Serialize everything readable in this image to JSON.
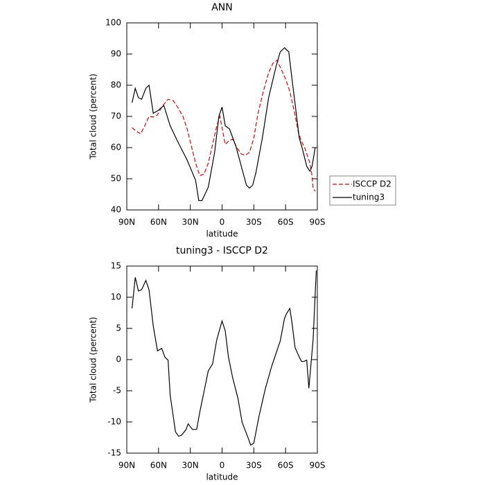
{
  "chart_data": [
    {
      "type": "line",
      "title": "ANN",
      "xlabel": "latitude",
      "ylabel": "Total cloud (percent)",
      "xlim": [
        90,
        -90
      ],
      "xticks": [
        {
          "value": 90,
          "label": "90N"
        },
        {
          "value": 60,
          "label": "60N"
        },
        {
          "value": 30,
          "label": "30N"
        },
        0,
        {
          "value": -30,
          "label": "30S"
        },
        {
          "value": -60,
          "label": "60S"
        },
        {
          "value": -90,
          "label": "90S"
        }
      ],
      "ylim": [
        40,
        100
      ],
      "yticks": [
        40,
        50,
        60,
        70,
        80,
        90,
        100
      ],
      "legend": "right",
      "series": [
        {
          "name": "ISCCP D2",
          "color": "#e00000",
          "dash": true,
          "x": [
            85,
            82,
            77,
            73,
            69,
            65,
            61,
            57,
            51,
            46,
            42,
            37,
            33,
            29,
            25,
            21,
            17,
            13,
            9,
            5,
            2,
            -3,
            -6,
            -10,
            -14,
            -18,
            -22,
            -26,
            -30,
            -34,
            -39,
            -44,
            -48,
            -52,
            -56,
            -60,
            -64,
            -68,
            -72,
            -75,
            -78,
            -81,
            -83,
            -85,
            -86,
            -88
          ],
          "values": [
            66.4,
            65.5,
            64.4,
            67,
            70,
            69.8,
            70.5,
            73,
            75.5,
            75,
            73,
            70,
            66,
            60.5,
            55,
            51,
            51.5,
            55,
            61,
            67,
            70,
            61,
            62,
            62.7,
            60,
            58,
            57.5,
            58.5,
            63,
            71,
            78,
            84,
            87,
            88,
            85,
            82,
            78,
            72,
            65,
            62,
            60,
            57,
            55,
            51,
            47,
            46
          ]
        },
        {
          "name": "tuning3",
          "color": "#000000",
          "dash": false,
          "x": [
            85,
            82,
            79,
            76,
            72,
            69,
            65,
            60,
            55,
            49,
            42,
            33,
            25,
            22,
            19,
            13,
            7,
            3,
            0,
            -3,
            -7,
            -13,
            -19,
            -23,
            -26,
            -29,
            -32,
            -38,
            -44,
            -51,
            -55,
            -59,
            -63,
            -65,
            -69,
            -73,
            -76,
            -80,
            -83,
            -85,
            -88
          ],
          "values": [
            74.4,
            79,
            76,
            75.5,
            79,
            80,
            71,
            72,
            73.5,
            67,
            62,
            56,
            49.5,
            43,
            43,
            47.3,
            58.5,
            70,
            73,
            67,
            66,
            60.5,
            53,
            48,
            47,
            48,
            52,
            63,
            76,
            86,
            90.7,
            92,
            90.7,
            85,
            74,
            63,
            59.5,
            54,
            52.4,
            54,
            60
          ]
        }
      ]
    },
    {
      "type": "line",
      "title": "tuning3 - ISCCP D2",
      "xlabel": "latitude",
      "ylabel": "Total cloud (percent)",
      "xlim": [
        90,
        -90
      ],
      "xticks": [
        {
          "value": 90,
          "label": "90N"
        },
        {
          "value": 60,
          "label": "60N"
        },
        {
          "value": 30,
          "label": "30N"
        },
        0,
        {
          "value": -30,
          "label": "30S"
        },
        {
          "value": -60,
          "label": "60S"
        },
        {
          "value": -90,
          "label": "90S"
        }
      ],
      "ylim": [
        -15,
        15
      ],
      "yticks": [
        -15,
        -10,
        -5,
        0,
        5,
        10,
        15
      ],
      "series": [
        {
          "color": "#000000",
          "dash": false,
          "x": [
            85,
            82,
            79,
            76,
            72,
            69,
            65,
            61,
            57,
            54,
            51,
            49,
            44,
            41,
            38,
            34,
            32,
            28,
            24,
            21,
            17,
            13,
            9,
            5,
            0,
            -3,
            -6,
            -10,
            -15,
            -19,
            -24,
            -27,
            -30,
            -35,
            -41,
            -47,
            -51,
            -55,
            -59,
            -61,
            -64,
            -66,
            -69,
            -73,
            -75,
            -77,
            -80,
            -82,
            -86,
            -89
          ],
          "values": [
            8.2,
            13.2,
            11,
            11.2,
            12.7,
            11.2,
            5.4,
            1.4,
            1.8,
            0.4,
            -0.1,
            -5.7,
            -11.6,
            -12.3,
            -12.1,
            -11.2,
            -10.3,
            -11.2,
            -11.2,
            -8.4,
            -5.1,
            -1.8,
            -0.7,
            3.2,
            6.2,
            4.6,
            0.4,
            -2.9,
            -6.2,
            -10.1,
            -12.3,
            -13.7,
            -13.4,
            -9,
            -4.6,
            -1,
            1,
            3,
            6.6,
            7.4,
            8.2,
            6,
            1.9,
            0.4,
            -0.3,
            -0.3,
            -0.1,
            -4.6,
            3.2,
            14.3
          ]
        }
      ]
    }
  ]
}
